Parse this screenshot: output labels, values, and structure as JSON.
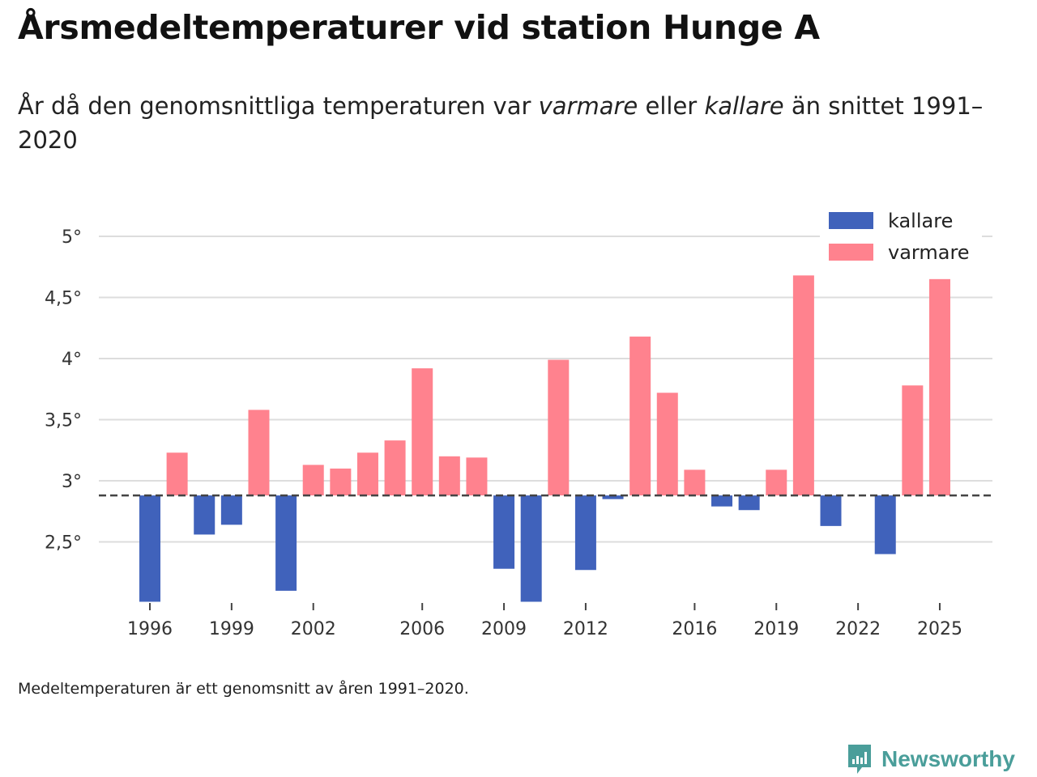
{
  "title": "Årsmedeltemperaturer vid station Hunge A",
  "subtitle": {
    "part1": "År då den genomsnittliga temperaturen var ",
    "warmer": "varmare",
    "part2": " eller ",
    "colder": "kallare",
    "part3": " än snittet 1991–2020"
  },
  "footnote": "Medeltemperaturen är ett genomsnitt av åren 1991–2020.",
  "brand": "Newsworthy",
  "colors": {
    "colder": "#4062bb",
    "warmer": "#ff828e",
    "grid": "#dddddd",
    "reference": "#444444",
    "brand": "#4a9e9a"
  },
  "chart_data": {
    "type": "bar",
    "reference_value": 2.88,
    "reference_style": "dashed",
    "ylim": [
      2.0,
      5.0
    ],
    "yticks": [
      {
        "value": 2.5,
        "label": "2,5°"
      },
      {
        "value": 3.0,
        "label": "3°"
      },
      {
        "value": 3.5,
        "label": "3,5°"
      },
      {
        "value": 4.0,
        "label": "4°"
      },
      {
        "value": 4.5,
        "label": "4,5°"
      },
      {
        "value": 5.0,
        "label": "5°"
      }
    ],
    "xticks": [
      {
        "value": 1996,
        "label": "1996"
      },
      {
        "value": 1999,
        "label": "1999"
      },
      {
        "value": 2002,
        "label": "2002"
      },
      {
        "value": 2006,
        "label": "2006"
      },
      {
        "value": 2009,
        "label": "2009"
      },
      {
        "value": 2012,
        "label": "2012"
      },
      {
        "value": 2016,
        "label": "2016"
      },
      {
        "value": 2019,
        "label": "2019"
      },
      {
        "value": 2022,
        "label": "2022"
      },
      {
        "value": 2025,
        "label": "2025"
      }
    ],
    "legend": {
      "position": "top-right",
      "items": [
        {
          "key": "colder",
          "label": "kallare"
        },
        {
          "key": "warmer",
          "label": "varmare"
        }
      ]
    },
    "years": [
      1996,
      1997,
      1998,
      1999,
      2000,
      2001,
      2002,
      2003,
      2004,
      2005,
      2006,
      2007,
      2008,
      2009,
      2010,
      2011,
      2012,
      2013,
      2014,
      2015,
      2016,
      2017,
      2018,
      2019,
      2020,
      2021,
      2022,
      2023,
      2024,
      2025
    ],
    "values": [
      2.01,
      3.23,
      2.56,
      2.64,
      3.58,
      2.1,
      3.13,
      3.1,
      3.23,
      3.33,
      3.92,
      3.2,
      3.19,
      2.28,
      2.01,
      3.99,
      2.27,
      2.85,
      4.18,
      3.72,
      3.09,
      2.79,
      2.76,
      3.09,
      4.68,
      2.63,
      null,
      2.4,
      3.78,
      4.65
    ]
  }
}
